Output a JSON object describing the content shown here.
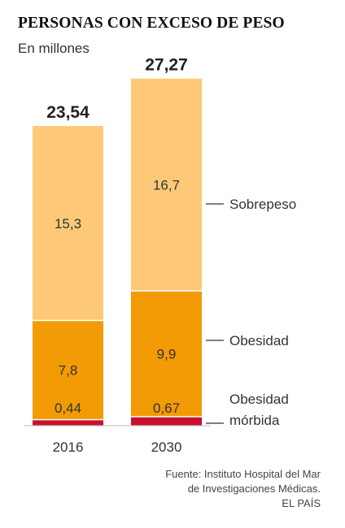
{
  "header": {
    "title": "PERSONAS CON EXCESO DE PESO",
    "subtitle": "En millones"
  },
  "chart_data": {
    "type": "bar",
    "stacked": true,
    "categories": [
      "2016",
      "2030"
    ],
    "totals": [
      "23,54",
      "27,27"
    ],
    "total_values": [
      23.54,
      27.27
    ],
    "series": [
      {
        "name": "Obesidad mórbida",
        "label_lines": [
          "Obesidad",
          "mórbida"
        ],
        "values": [
          0.44,
          0.67
        ],
        "labels": [
          "0,44",
          "0,67"
        ],
        "color": "#c8102e"
      },
      {
        "name": "Obesidad",
        "label_lines": [
          "Obesidad"
        ],
        "values": [
          7.8,
          9.9
        ],
        "labels": [
          "7,8",
          "9,9"
        ],
        "color": "#f29b05"
      },
      {
        "name": "Sobrepeso",
        "label_lines": [
          "Sobrepeso"
        ],
        "values": [
          15.3,
          16.7
        ],
        "labels": [
          "15,3",
          "16,7"
        ],
        "color": "#fdc978"
      }
    ],
    "legend": "right",
    "grid": false
  },
  "source": {
    "lines": [
      "Fuente: Instituto Hospital del Mar",
      "de Investigaciones Médicas."
    ],
    "brand": "EL PAÍS"
  }
}
